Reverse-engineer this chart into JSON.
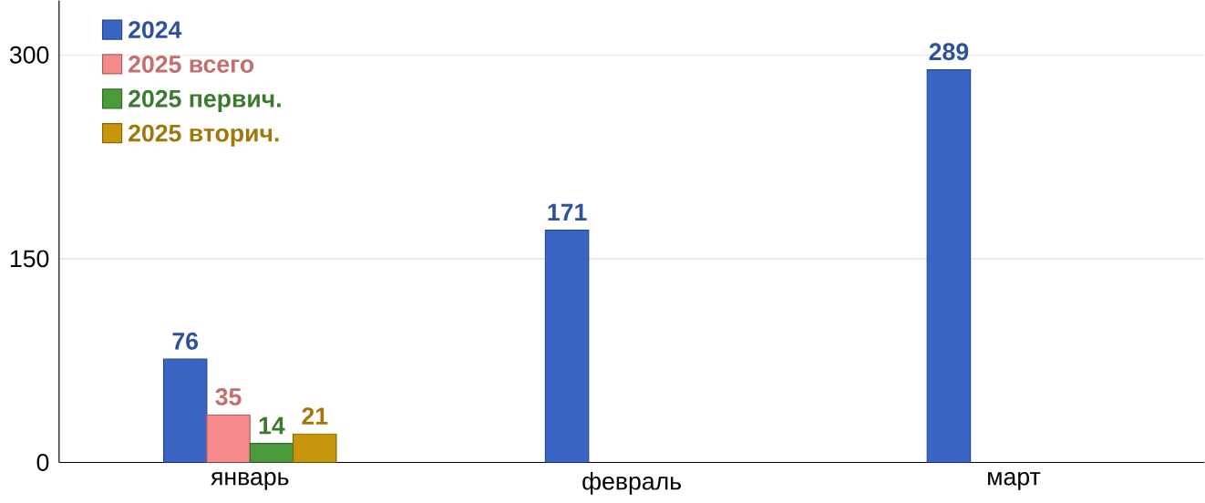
{
  "chart_data": {
    "type": "bar",
    "categories": [
      "январь",
      "февраль",
      "март"
    ],
    "series": [
      {
        "name": "2024",
        "color": "#3a65c4",
        "values": [
          76,
          171,
          289
        ]
      },
      {
        "name": "2025 всего",
        "color": "#f58a8a",
        "values": [
          35,
          null,
          null
        ]
      },
      {
        "name": "2025 первич.",
        "color": "#4a9a3a",
        "values": [
          14,
          null,
          null
        ]
      },
      {
        "name": "2025 вторич.",
        "color": "#c8960c",
        "values": [
          21,
          null,
          null
        ]
      }
    ],
    "ylim": [
      0,
      340
    ],
    "yticks": [
      0,
      150,
      300
    ],
    "grid": "y",
    "legend": "top left",
    "data_labels": true
  }
}
